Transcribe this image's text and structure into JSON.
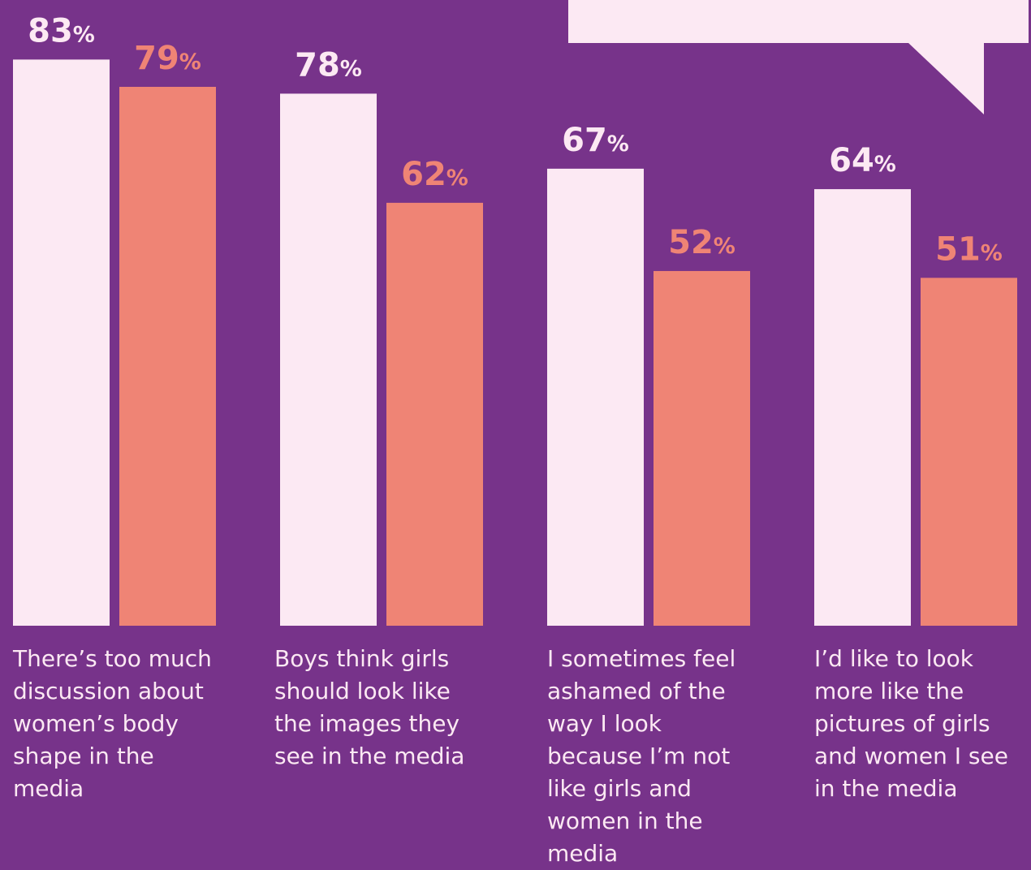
{
  "colors": {
    "background": "#77338a",
    "series_light": "#fce9f3",
    "series_coral": "#ef8475",
    "bubble": "#fce9f3"
  },
  "chart_data": {
    "type": "bar",
    "categories": [
      "There’s too much discussion about women’s body shape in the media",
      "Boys think girls should look like the images they see in the media",
      "I sometimes feel ashamed of the way I look because I’m not like girls and women in the media",
      "I’d like to look more like the pictures of girls and women I see in the media"
    ],
    "series": [
      {
        "values": [
          83,
          78,
          67,
          64
        ],
        "color": "#fce9f3"
      },
      {
        "values": [
          79,
          62,
          52,
          51
        ],
        "color": "#ef8475"
      }
    ],
    "value_suffix": "%",
    "ylim": [
      0,
      100
    ],
    "grid": false
  }
}
